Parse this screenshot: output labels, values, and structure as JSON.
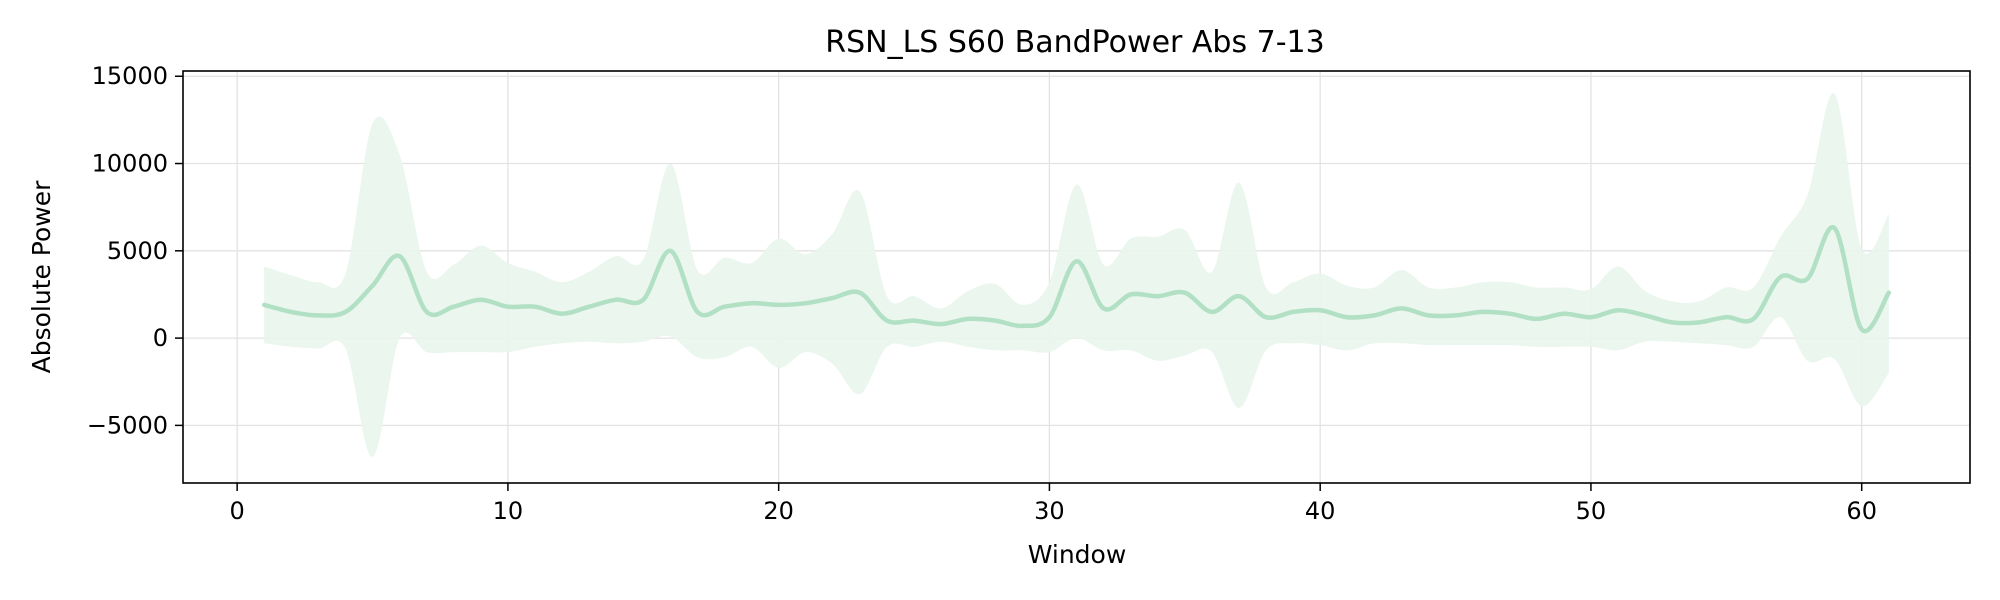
{
  "chart_data": {
    "type": "line",
    "title": "RSN_LS S60 BandPower Abs 7-13",
    "xlabel": "Window",
    "ylabel": "Absolute Power",
    "xlim": [
      -2,
      64
    ],
    "ylim": [
      -8300,
      15300
    ],
    "xticks": [
      0,
      10,
      20,
      30,
      40,
      50,
      60
    ],
    "xtick_labels": [
      "0",
      "10",
      "20",
      "30",
      "40",
      "50",
      "60"
    ],
    "yticks": [
      -5000,
      0,
      5000,
      10000,
      15000
    ],
    "ytick_labels": [
      "−5000",
      "0",
      "5000",
      "10000",
      "15000"
    ],
    "grid": true,
    "legend": "none",
    "colors": {
      "line": "#b2e0c4",
      "band": "#e8f5ec",
      "axes": "#000000"
    },
    "series": [
      {
        "x": [
          1,
          2,
          3,
          4,
          5,
          6,
          7,
          8,
          9,
          10,
          11,
          12,
          13,
          14,
          15,
          16,
          17,
          18,
          19,
          20,
          21,
          22,
          23,
          24,
          25,
          26,
          27,
          28,
          29,
          30,
          31,
          32,
          33,
          34,
          35,
          36,
          37,
          38,
          39,
          40,
          41,
          42,
          43,
          44,
          45,
          46,
          47,
          48,
          49,
          50,
          51,
          52,
          53,
          54,
          55,
          56,
          57,
          58,
          59,
          60,
          61
        ],
        "mean": [
          1900,
          1500,
          1300,
          1500,
          3000,
          4700,
          1500,
          1800,
          2200,
          1800,
          1800,
          1400,
          1800,
          2200,
          2200,
          5000,
          1500,
          1800,
          2000,
          1900,
          2000,
          2300,
          2600,
          1000,
          1000,
          800,
          1100,
          1000,
          700,
          1200,
          4400,
          1700,
          2500,
          2400,
          2600,
          1500,
          2400,
          1200,
          1500,
          1600,
          1200,
          1300,
          1700,
          1300,
          1300,
          1500,
          1400,
          1100,
          1400,
          1200,
          1600,
          1300,
          900,
          900,
          1200,
          1100,
          3500,
          3400,
          6300,
          500,
          2600
        ],
        "upper": [
          4100,
          3600,
          3200,
          3700,
          12300,
          10500,
          3800,
          4200,
          5300,
          4300,
          3800,
          3200,
          3800,
          4700,
          4500,
          10000,
          3900,
          4600,
          4300,
          5700,
          4800,
          6000,
          8400,
          2400,
          2400,
          1700,
          2700,
          3100,
          1900,
          3200,
          8800,
          4200,
          5700,
          5800,
          6200,
          3800,
          8900,
          2900,
          3200,
          3700,
          3000,
          2900,
          3900,
          2900,
          2900,
          3200,
          3200,
          2900,
          2900,
          2800,
          4100,
          2700,
          2100,
          2100,
          2900,
          2900,
          5800,
          8200,
          14000,
          5100,
          7100
        ],
        "lower": [
          -300,
          -500,
          -600,
          -600,
          -6800,
          0,
          -800,
          -800,
          -800,
          -800,
          -500,
          -300,
          -200,
          -300,
          -200,
          100,
          -1100,
          -1100,
          -500,
          -1700,
          -800,
          -1500,
          -3200,
          -500,
          -500,
          -200,
          -500,
          -700,
          -700,
          -800,
          0,
          -700,
          -700,
          -1300,
          -1000,
          -800,
          -4000,
          -700,
          -300,
          -400,
          -700,
          -300,
          -300,
          -400,
          -400,
          -400,
          -400,
          -500,
          -500,
          -500,
          -700,
          -200,
          -200,
          -300,
          -400,
          -500,
          1200,
          -1300,
          -1200,
          -3900,
          -2000
        ]
      }
    ]
  }
}
